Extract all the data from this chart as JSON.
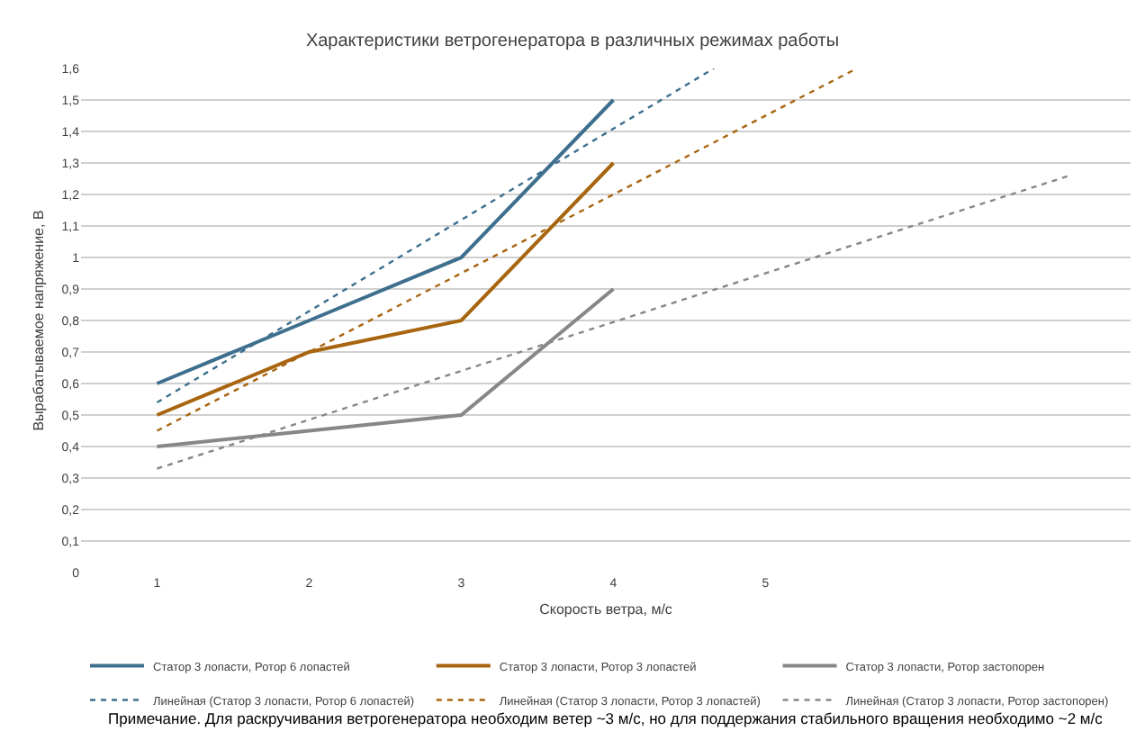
{
  "chart_data": {
    "type": "line",
    "title": "Характеристики ветрогенератора в различных режимах работы",
    "xlabel": "Скорость ветра, м/с",
    "ylabel": "Вырабатываемое напряжение, В",
    "x": [
      1,
      2,
      3,
      4
    ],
    "series": [
      {
        "name": "Статор 3 лопасти, Ротор 6 лопастей",
        "color": "#3e6f8e",
        "values": [
          0.6,
          0.8,
          1.0,
          1.5
        ]
      },
      {
        "name": "Статор 3 лопасти, Ротор 3 лопастей",
        "color": "#a8650f",
        "values": [
          0.5,
          0.7,
          0.8,
          1.3
        ]
      },
      {
        "name": "Статор 3 лопасти, Ротор застопорен",
        "color": "#878787",
        "values": [
          0.4,
          0.45,
          0.5,
          0.9
        ]
      },
      {
        "name": "Линейная (Статор 3 лопасти, Ротор 6 лопастей)",
        "color": "#3e6f8e",
        "x": [
          1,
          4.66
        ],
        "values": [
          0.54,
          1.6
        ],
        "line_style": "dotted"
      },
      {
        "name": "Линейная (Статор 3 лопасти, Ротор 3 лопастей)",
        "color": "#a8650f",
        "x": [
          1,
          5.6
        ],
        "values": [
          0.45,
          1.6
        ],
        "line_style": "dotted"
      },
      {
        "name": "Линейная (Статор 3 лопасти, Ротор застопорен)",
        "color": "#878787",
        "x": [
          1,
          7
        ],
        "values": [
          0.33,
          1.26
        ],
        "line_style": "dotted"
      }
    ],
    "xlim": [
      0.5,
      7.4
    ],
    "xticks": [
      1,
      2,
      3,
      4,
      5
    ],
    "ylim": [
      0,
      1.6
    ],
    "yticks": [
      0,
      {
        "value": 0.1,
        "label": "0,1"
      },
      {
        "value": 0.2,
        "label": "0,2"
      },
      {
        "value": 0.3,
        "label": "0,3"
      },
      {
        "value": 0.4,
        "label": "0,4"
      },
      {
        "value": 0.5,
        "label": "0,5"
      },
      {
        "value": 0.6,
        "label": "0,6"
      },
      {
        "value": 0.7,
        "label": "0,7"
      },
      {
        "value": 0.8,
        "label": "0,8"
      },
      {
        "value": 0.9,
        "label": "0,9"
      },
      1,
      {
        "value": 1.1,
        "label": "1,1"
      },
      {
        "value": 1.2,
        "label": "1,2"
      },
      {
        "value": 1.3,
        "label": "1,3"
      },
      {
        "value": 1.4,
        "label": "1,4"
      },
      {
        "value": 1.5,
        "label": "1,5"
      },
      {
        "value": 1.6,
        "label": "1,6"
      }
    ],
    "grid": "y",
    "legend": "bottom",
    "line_style": "solid",
    "marker": "none",
    "annotations": [
      "Примечание. Для раскручивания ветрогенератора необходим ветер ~3 м/с, но для поддержания стабильного вращения необходимо ~2 м/с"
    ]
  }
}
